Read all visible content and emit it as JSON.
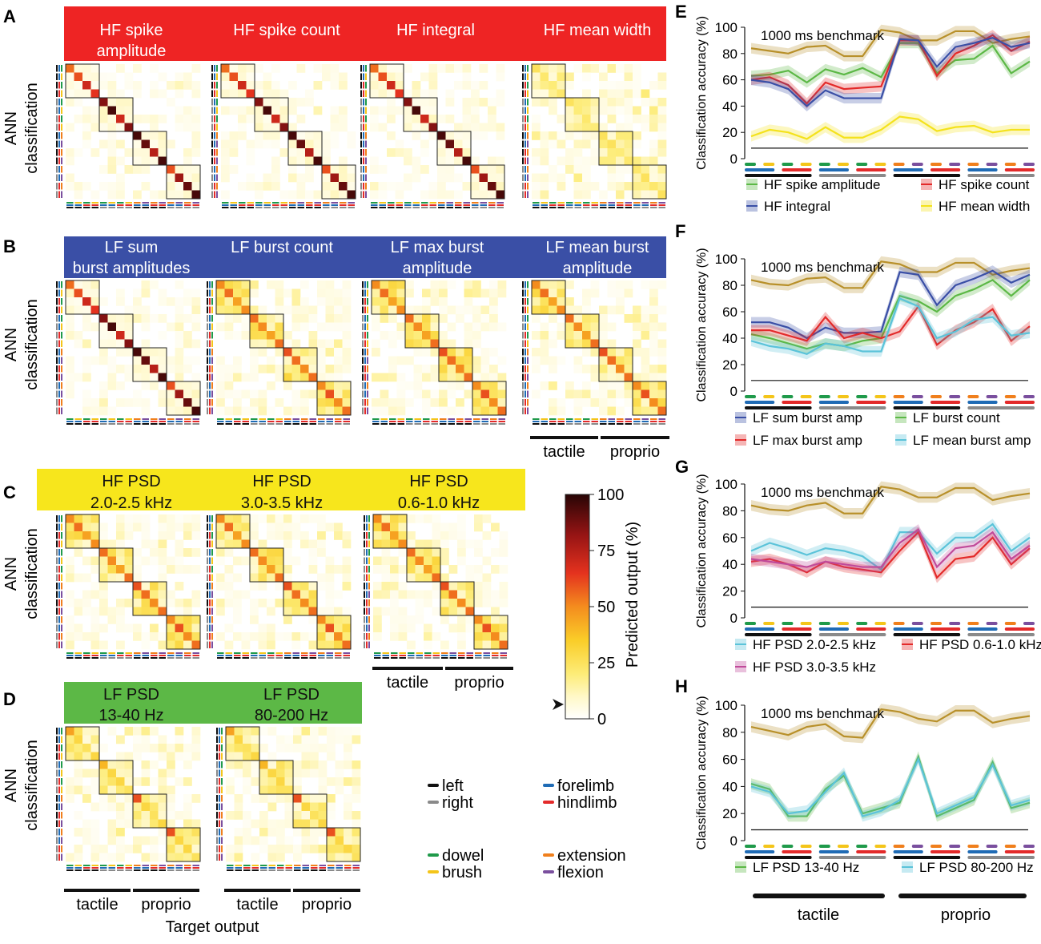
{
  "colors": {
    "hf": "#ee2424",
    "lf": "#3a4fa6",
    "hfpsd": "#f7e61c",
    "lfpsd": "#5cb846",
    "black": "#111111",
    "gray": "#8a8a8a",
    "green": "#1f9a4a",
    "yellow": "#f4c51a",
    "blue": "#1f6bb5",
    "red": "#e32a2a",
    "orange": "#f07f1c",
    "purple": "#7a4f9e",
    "gold": "#b8902a",
    "frame": "#222222"
  },
  "panels": {
    "A": "A",
    "B": "B",
    "C": "C",
    "D": "D",
    "E": "E",
    "F": "F",
    "G": "G",
    "H": "H"
  },
  "common": {
    "ann": "ANN",
    "classification": "classification",
    "tactile": "tactile",
    "proprio": "proprio",
    "target_output": "Target output",
    "y_label": "Classification accuracy (%)",
    "benchmark": "1000 ms benchmark"
  },
  "features": {
    "A": [
      {
        "l1": "HF spike",
        "l2": "amplitude",
        "type": "sharp"
      },
      {
        "l1": "HF spike count",
        "l2": "",
        "type": "sharp"
      },
      {
        "l1": "HF integral",
        "l2": "",
        "type": "sharp"
      },
      {
        "l1": "HF mean width",
        "l2": "",
        "type": "diffuse"
      }
    ],
    "B": [
      {
        "l1": "LF sum",
        "l2": "burst amplitudes",
        "type": "sharp"
      },
      {
        "l1": "LF burst count",
        "l2": "",
        "type": "medium"
      },
      {
        "l1": "LF max burst",
        "l2": "amplitude",
        "type": "medium"
      },
      {
        "l1": "LF mean burst",
        "l2": "amplitude",
        "type": "medium"
      }
    ],
    "C": [
      {
        "l1": "HF PSD",
        "l2": "2.0-2.5 kHz",
        "type": "medium"
      },
      {
        "l1": "HF PSD",
        "l2": "3.0-3.5 kHz",
        "type": "medium"
      },
      {
        "l1": "HF PSD",
        "l2": "0.6-1.0 kHz",
        "type": "medium"
      }
    ],
    "D": [
      {
        "l1": "LF PSD",
        "l2": "13-40 Hz",
        "type": "weak"
      },
      {
        "l1": "LF PSD",
        "l2": "80-200 Hz",
        "type": "weak"
      }
    ]
  },
  "colorbar": {
    "label": "Predicted output (%)",
    "ticks": [
      "100",
      "75",
      "50",
      "25",
      "0"
    ]
  },
  "legend": {
    "left": "left",
    "right": "right",
    "forelimb": "forelimb",
    "hindlimb": "hindlimb",
    "dowel": "dowel",
    "brush": "brush",
    "extension": "extension",
    "flexion": "flexion"
  },
  "chart_data": [
    {
      "panel": "E",
      "type": "line",
      "ylabel": "Classification accuracy (%)",
      "ylim": [
        0,
        100
      ],
      "yticks": [
        0,
        20,
        40,
        60,
        80,
        100
      ],
      "x": [
        1,
        2,
        3,
        4,
        5,
        6,
        7,
        8,
        9,
        10,
        11,
        12,
        13,
        14,
        15,
        16
      ],
      "annotation": "1000 ms benchmark",
      "series": [
        {
          "name": "benchmark",
          "color": "#b8902a",
          "values": [
            84,
            82,
            80,
            85,
            86,
            78,
            78,
            98,
            96,
            90,
            90,
            97,
            97,
            88,
            91,
            93
          ]
        },
        {
          "name": "HF spike amplitude",
          "color": "#5cb846",
          "values": [
            63,
            64,
            67,
            58,
            68,
            64,
            69,
            62,
            88,
            88,
            65,
            75,
            76,
            86,
            65,
            74
          ]
        },
        {
          "name": "HF spike count",
          "color": "#e32a2a",
          "values": [
            60,
            62,
            56,
            42,
            58,
            53,
            54,
            55,
            90,
            90,
            63,
            80,
            86,
            94,
            82,
            89
          ]
        },
        {
          "name": "HF integral",
          "color": "#3a4fa6",
          "values": [
            60,
            58,
            53,
            40,
            52,
            46,
            46,
            46,
            91,
            90,
            70,
            85,
            88,
            92,
            85,
            88
          ]
        },
        {
          "name": "HF mean width",
          "color": "#f4e21c",
          "values": [
            17,
            22,
            20,
            15,
            24,
            16,
            16,
            22,
            32,
            30,
            21,
            24,
            25,
            20,
            22,
            22
          ]
        }
      ],
      "legend": [
        "HF spike amplitude",
        "HF spike count",
        "HF integral",
        "HF mean width"
      ]
    },
    {
      "panel": "F",
      "type": "line",
      "ylabel": "Classification accuracy (%)",
      "ylim": [
        0,
        100
      ],
      "yticks": [
        0,
        20,
        40,
        60,
        80,
        100
      ],
      "x": [
        1,
        2,
        3,
        4,
        5,
        6,
        7,
        8,
        9,
        10,
        11,
        12,
        13,
        14,
        15,
        16
      ],
      "annotation": "1000 ms benchmark",
      "series": [
        {
          "name": "benchmark",
          "color": "#b8902a",
          "values": [
            84,
            81,
            80,
            85,
            86,
            78,
            78,
            98,
            96,
            90,
            90,
            97,
            97,
            88,
            91,
            93
          ]
        },
        {
          "name": "LF sum burst amp",
          "color": "#3a4fa6",
          "values": [
            52,
            52,
            48,
            40,
            48,
            44,
            44,
            45,
            90,
            88,
            65,
            80,
            85,
            91,
            82,
            88
          ]
        },
        {
          "name": "LF burst count",
          "color": "#5cb846",
          "values": [
            43,
            40,
            36,
            32,
            36,
            34,
            38,
            40,
            72,
            68,
            60,
            72,
            77,
            84,
            72,
            84
          ]
        },
        {
          "name": "LF max burst amp",
          "color": "#e32a2a",
          "values": [
            46,
            46,
            42,
            38,
            56,
            40,
            44,
            40,
            45,
            64,
            35,
            46,
            52,
            62,
            38,
            49
          ]
        },
        {
          "name": "LF mean burst amp",
          "color": "#5bc3d9",
          "values": [
            38,
            34,
            32,
            28,
            36,
            34,
            30,
            30,
            70,
            64,
            40,
            45,
            54,
            56,
            42,
            44
          ]
        }
      ],
      "legend": [
        "LF sum burst amp",
        "LF burst count",
        "LF max burst amp",
        "LF mean burst amp"
      ]
    },
    {
      "panel": "G",
      "type": "line",
      "ylabel": "Classification accuracy (%)",
      "ylim": [
        0,
        100
      ],
      "yticks": [
        0,
        20,
        40,
        60,
        80,
        100
      ],
      "x": [
        1,
        2,
        3,
        4,
        5,
        6,
        7,
        8,
        9,
        10,
        11,
        12,
        13,
        14,
        15,
        16
      ],
      "annotation": "1000 ms benchmark",
      "series": [
        {
          "name": "benchmark",
          "color": "#b8902a",
          "values": [
            84,
            81,
            80,
            84,
            86,
            78,
            78,
            98,
            96,
            90,
            90,
            97,
            97,
            88,
            91,
            93
          ]
        },
        {
          "name": "HF PSD 2.0-2.5 kHz",
          "color": "#5bc3d9",
          "values": [
            50,
            56,
            52,
            47,
            52,
            50,
            46,
            36,
            64,
            64,
            48,
            60,
            60,
            70,
            50,
            60
          ]
        },
        {
          "name": "HF PSD 0.6-1.0 kHz",
          "color": "#e32a2a",
          "values": [
            42,
            44,
            40,
            34,
            42,
            38,
            36,
            34,
            50,
            64,
            30,
            44,
            46,
            60,
            40,
            52
          ]
        },
        {
          "name": "HF PSD 3.0-3.5 kHz",
          "color": "#c04a9a",
          "values": [
            44,
            42,
            40,
            38,
            42,
            40,
            38,
            38,
            56,
            66,
            38,
            52,
            54,
            64,
            44,
            54
          ]
        }
      ],
      "legend": [
        "HF PSD 2.0-2.5 kHz",
        "HF PSD 0.6-1.0 kHz",
        "HF PSD 3.0-3.5 kHz"
      ]
    },
    {
      "panel": "H",
      "type": "line",
      "ylabel": "Classification accuracy (%)",
      "ylim": [
        0,
        100
      ],
      "yticks": [
        0,
        20,
        40,
        60,
        80,
        100
      ],
      "x": [
        1,
        2,
        3,
        4,
        5,
        6,
        7,
        8,
        9,
        10,
        11,
        12,
        13,
        14,
        15,
        16
      ],
      "annotation": "1000 ms benchmark",
      "series": [
        {
          "name": "benchmark",
          "color": "#b8902a",
          "values": [
            84,
            81,
            78,
            84,
            86,
            77,
            76,
            97,
            95,
            90,
            88,
            96,
            96,
            87,
            90,
            92
          ]
        },
        {
          "name": "LF PSD 13-40 Hz",
          "color": "#5cb846",
          "values": [
            42,
            38,
            18,
            18,
            38,
            48,
            20,
            24,
            28,
            62,
            18,
            24,
            30,
            58,
            24,
            28
          ]
        },
        {
          "name": "LF PSD 80-200 Hz",
          "color": "#5bc3d9",
          "values": [
            40,
            36,
            20,
            22,
            36,
            50,
            18,
            22,
            30,
            60,
            20,
            26,
            32,
            56,
            26,
            30
          ]
        }
      ],
      "legend": [
        "LF PSD 13-40 Hz",
        "LF PSD 80-200 Hz"
      ]
    }
  ]
}
